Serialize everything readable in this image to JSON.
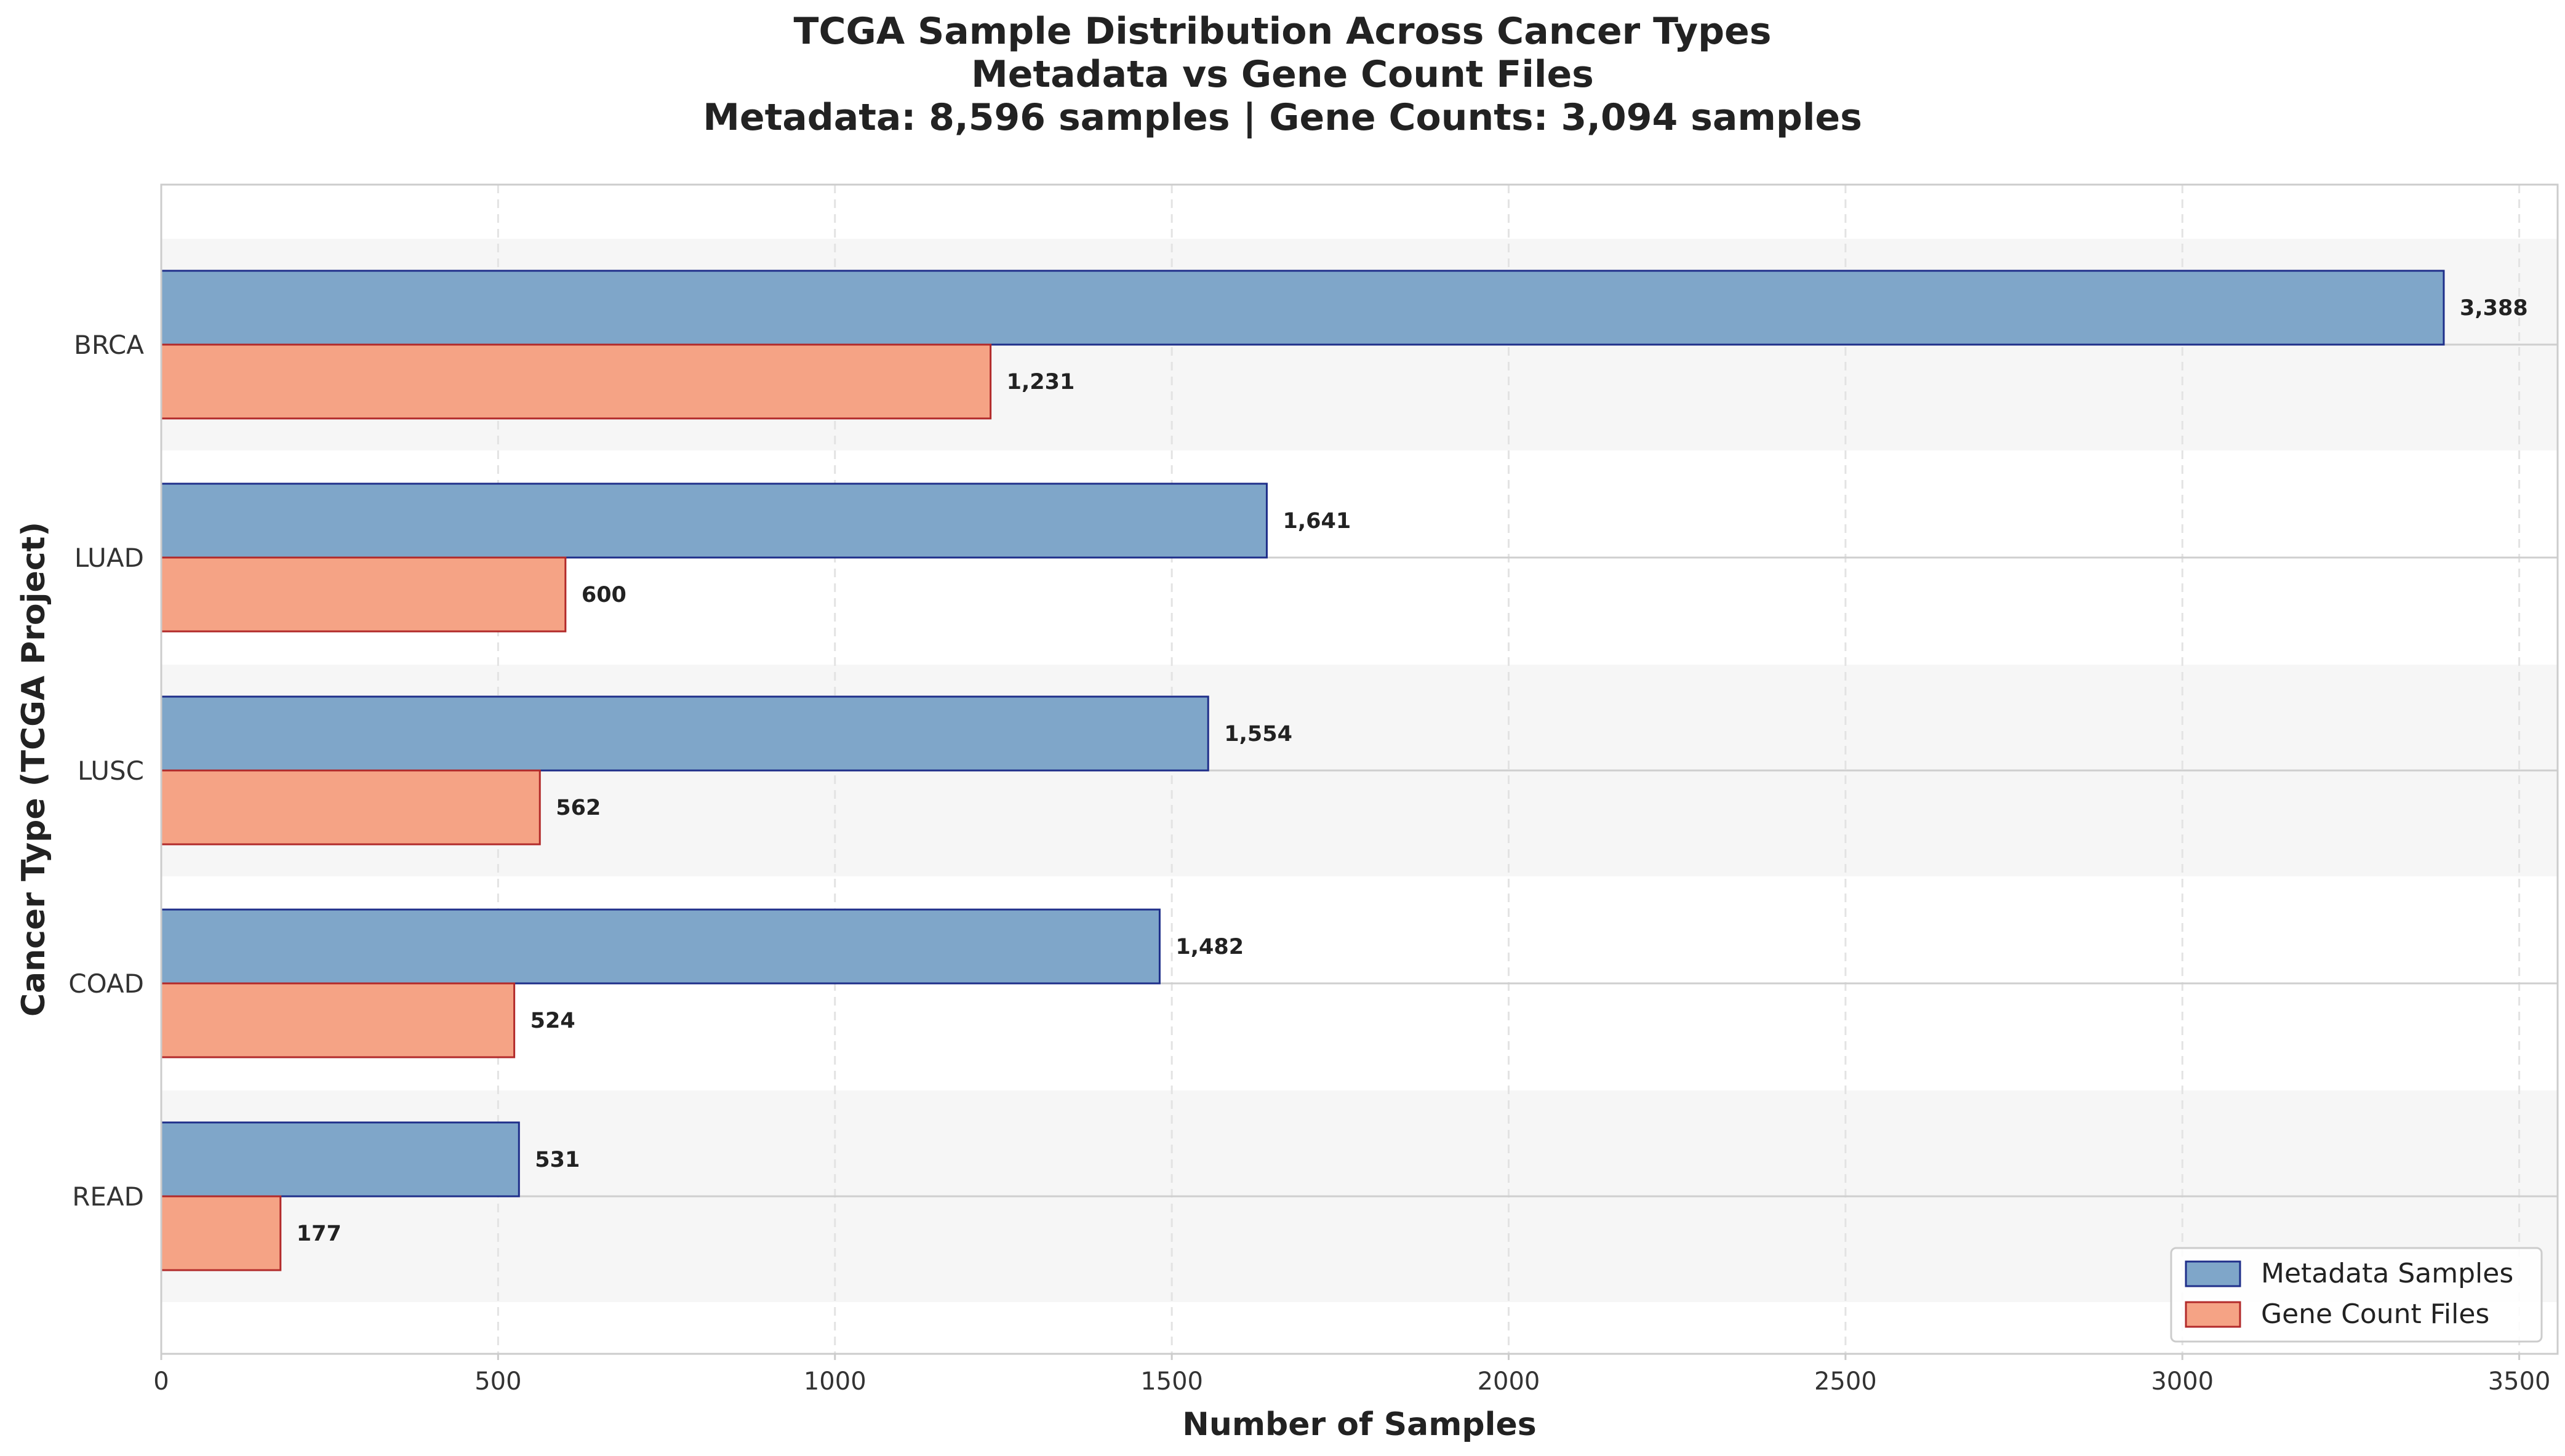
{
  "chart_data": {
    "type": "bar",
    "orientation": "horizontal",
    "title_lines": [
      "TCGA Sample Distribution Across Cancer Types",
      "Metadata vs Gene Count Files",
      "Metadata: 8,596 samples | Gene Counts: 3,094 samples"
    ],
    "xlabel": "Number of Samples",
    "ylabel": "Cancer Type (TCGA Project)",
    "categories": [
      "BRCA",
      "LUAD",
      "LUSC",
      "COAD",
      "READ"
    ],
    "series": [
      {
        "name": "Metadata Samples",
        "values": [
          3388,
          1641,
          1554,
          1482,
          531
        ],
        "labels": [
          "3,388",
          "1,641",
          "1,554",
          "1,482",
          "531"
        ],
        "color": "#7fa6c9",
        "edge_color": "#1f2f8a"
      },
      {
        "name": "Gene Count Files",
        "values": [
          1231,
          600,
          562,
          524,
          177
        ],
        "labels": [
          "1,231",
          "600",
          "562",
          "524",
          "177"
        ],
        "color": "#f5a385",
        "edge_color": "#b22a2a"
      }
    ],
    "xlim": [
      0,
      3557
    ],
    "xticks": [
      0,
      500,
      1000,
      1500,
      2000,
      2500,
      3000,
      3500
    ],
    "xtick_labels": [
      "0",
      "500",
      "1000",
      "1500",
      "2000",
      "2500",
      "3000",
      "3500"
    ],
    "grid": true,
    "alternating_row_shading": true,
    "legend_position": "lower-right"
  }
}
